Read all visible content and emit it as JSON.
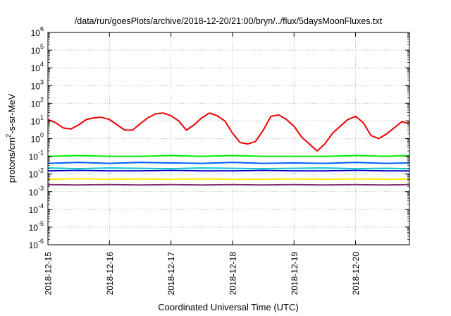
{
  "chart_data": {
    "type": "line",
    "title": "/data/run/goesPlots/archive/2018-12-20/21:00/bryn/../flux/5daysMoonFluxes.txt",
    "xlabel": "Coordinated Universal Time (UTC)",
    "ylabel": {
      "base": "protons/cm",
      "exp": "2",
      "rest": "-s-sr-MeV"
    },
    "y_scale": "log",
    "ylim": [
      1e-06,
      1000000.0
    ],
    "y_ticks": [
      {
        "base": "10",
        "exp": "6",
        "value": 1000000.0
      },
      {
        "base": "10",
        "exp": "5",
        "value": 100000.0
      },
      {
        "base": "10",
        "exp": "4",
        "value": 10000.0
      },
      {
        "base": "10",
        "exp": "3",
        "value": 1000.0
      },
      {
        "base": "10",
        "exp": "2",
        "value": 100.0
      },
      {
        "base": "10",
        "exp": "1",
        "value": 10.0
      },
      {
        "base": "10",
        "exp": "0",
        "value": 1
      },
      {
        "base": "10",
        "exp": "-1",
        "value": 0.1
      },
      {
        "base": "10",
        "exp": "-2",
        "value": 0.01
      },
      {
        "base": "10",
        "exp": "-3",
        "value": 0.001
      },
      {
        "base": "10",
        "exp": "-4",
        "value": 0.0001
      },
      {
        "base": "10",
        "exp": "-5",
        "value": 1e-05
      },
      {
        "base": "10",
        "exp": "-6",
        "value": 1e-06
      }
    ],
    "x_range": [
      "2018-12-15T00:00",
      "2018-12-20T21:00"
    ],
    "x_ticks": [
      "2018-12-15",
      "2018-12-16",
      "2018-12-17",
      "2018-12-18",
      "2018-12-19",
      "2018-12-20"
    ],
    "grid": true,
    "series": [
      {
        "color": "#ee0000",
        "x": [
          "2018-12-15T00:00",
          "2018-12-15T03:00",
          "2018-12-15T06:00",
          "2018-12-15T09:00",
          "2018-12-15T12:00",
          "2018-12-15T15:00",
          "2018-12-15T18:00",
          "2018-12-15T21:00",
          "2018-12-16T00:00",
          "2018-12-16T03:00",
          "2018-12-16T06:00",
          "2018-12-16T09:00",
          "2018-12-16T12:00",
          "2018-12-16T15:00",
          "2018-12-16T18:00",
          "2018-12-16T21:00",
          "2018-12-17T00:00",
          "2018-12-17T03:00",
          "2018-12-17T06:00",
          "2018-12-17T09:00",
          "2018-12-17T12:00",
          "2018-12-17T15:00",
          "2018-12-17T18:00",
          "2018-12-17T21:00",
          "2018-12-18T00:00",
          "2018-12-18T03:00",
          "2018-12-18T06:00",
          "2018-12-18T09:00",
          "2018-12-18T12:00",
          "2018-12-18T15:00",
          "2018-12-18T18:00",
          "2018-12-18T21:00",
          "2018-12-19T00:00",
          "2018-12-19T03:00",
          "2018-12-19T06:00",
          "2018-12-19T09:00",
          "2018-12-19T12:00",
          "2018-12-19T15:00",
          "2018-12-19T18:00",
          "2018-12-19T21:00",
          "2018-12-20T00:00",
          "2018-12-20T03:00",
          "2018-12-20T06:00",
          "2018-12-20T09:00",
          "2018-12-20T12:00",
          "2018-12-20T15:00",
          "2018-12-20T18:00",
          "2018-12-20T21:00"
        ],
        "values": [
          12,
          8,
          4,
          3.5,
          6,
          12,
          15,
          16,
          12,
          6,
          3,
          3,
          7,
          15,
          25,
          28,
          20,
          10,
          3,
          6,
          15,
          28,
          20,
          10,
          2,
          0.6,
          0.5,
          0.7,
          3,
          18,
          22,
          12,
          5,
          1.2,
          0.5,
          0.2,
          0.5,
          2,
          5,
          12,
          18,
          8,
          1.5,
          1,
          1.8,
          4,
          9,
          7
        ]
      },
      {
        "color": "#00ee00",
        "x": [
          "2018-12-15T00:00",
          "2018-12-15T12:00",
          "2018-12-16T00:00",
          "2018-12-16T12:00",
          "2018-12-17T00:00",
          "2018-12-17T12:00",
          "2018-12-18T00:00",
          "2018-12-18T12:00",
          "2018-12-19T00:00",
          "2018-12-19T12:00",
          "2018-12-20T00:00",
          "2018-12-20T12:00",
          "2018-12-20T21:00"
        ],
        "values": [
          0.1,
          0.11,
          0.1,
          0.1,
          0.11,
          0.1,
          0.11,
          0.1,
          0.1,
          0.1,
          0.11,
          0.1,
          0.11
        ]
      },
      {
        "color": "#0060ff",
        "x": [
          "2018-12-15T00:00",
          "2018-12-15T12:00",
          "2018-12-16T00:00",
          "2018-12-16T12:00",
          "2018-12-17T00:00",
          "2018-12-17T12:00",
          "2018-12-18T00:00",
          "2018-12-18T12:00",
          "2018-12-19T00:00",
          "2018-12-19T12:00",
          "2018-12-20T00:00",
          "2018-12-20T12:00",
          "2018-12-20T21:00"
        ],
        "values": [
          0.04,
          0.045,
          0.04,
          0.045,
          0.042,
          0.04,
          0.045,
          0.04,
          0.042,
          0.04,
          0.045,
          0.04,
          0.042
        ]
      },
      {
        "color": "#00cccc",
        "x": [
          "2018-12-15T00:00",
          "2018-12-15T12:00",
          "2018-12-16T00:00",
          "2018-12-16T12:00",
          "2018-12-17T00:00",
          "2018-12-17T12:00",
          "2018-12-18T00:00",
          "2018-12-18T12:00",
          "2018-12-19T00:00",
          "2018-12-19T12:00",
          "2018-12-20T00:00",
          "2018-12-20T12:00",
          "2018-12-20T21:00"
        ],
        "values": [
          0.022,
          0.02,
          0.022,
          0.021,
          0.02,
          0.022,
          0.021,
          0.02,
          0.021,
          0.022,
          0.02,
          0.021,
          0.02
        ]
      },
      {
        "color": "#0000cc",
        "x": [
          "2018-12-15T00:00",
          "2018-12-15T12:00",
          "2018-12-16T00:00",
          "2018-12-16T12:00",
          "2018-12-17T00:00",
          "2018-12-17T12:00",
          "2018-12-18T00:00",
          "2018-12-18T12:00",
          "2018-12-19T00:00",
          "2018-12-19T12:00",
          "2018-12-20T00:00",
          "2018-12-20T12:00",
          "2018-12-20T21:00"
        ],
        "values": [
          0.015,
          0.016,
          0.015,
          0.015,
          0.016,
          0.015,
          0.015,
          0.016,
          0.015,
          0.015,
          0.016,
          0.015,
          0.015
        ]
      },
      {
        "color": "#ffee00",
        "x": [
          "2018-12-15T00:00",
          "2018-12-15T12:00",
          "2018-12-16T00:00",
          "2018-12-16T12:00",
          "2018-12-17T00:00",
          "2018-12-17T12:00",
          "2018-12-18T00:00",
          "2018-12-18T12:00",
          "2018-12-19T00:00",
          "2018-12-19T12:00",
          "2018-12-20T00:00",
          "2018-12-20T12:00",
          "2018-12-20T21:00"
        ],
        "values": [
          0.005,
          0.0055,
          0.005,
          0.0052,
          0.005,
          0.0053,
          0.005,
          0.005,
          0.0052,
          0.005,
          0.0053,
          0.005,
          0.0052
        ]
      },
      {
        "color": "#803070",
        "x": [
          "2018-12-15T00:00",
          "2018-12-15T12:00",
          "2018-12-16T00:00",
          "2018-12-16T12:00",
          "2018-12-17T00:00",
          "2018-12-17T12:00",
          "2018-12-18T00:00",
          "2018-12-18T12:00",
          "2018-12-19T00:00",
          "2018-12-19T12:00",
          "2018-12-20T00:00",
          "2018-12-20T12:00",
          "2018-12-20T21:00"
        ],
        "values": [
          0.0025,
          0.0024,
          0.0025,
          0.0024,
          0.0025,
          0.0024,
          0.0025,
          0.0024,
          0.0025,
          0.0024,
          0.0025,
          0.0024,
          0.0025
        ]
      }
    ]
  }
}
